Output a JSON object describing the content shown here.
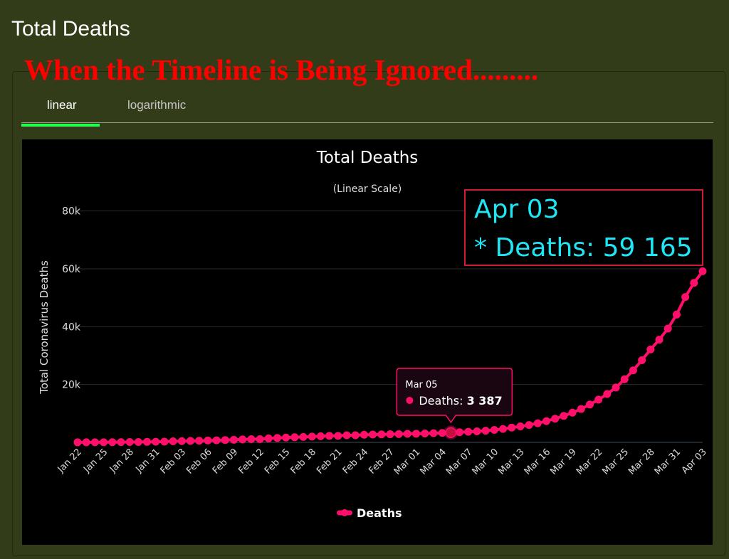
{
  "page": {
    "heading": "Total Deaths",
    "overlay_title": "When the Timeline is Being Ignored........."
  },
  "tabs": [
    {
      "label": "linear",
      "active": true
    },
    {
      "label": "logarithmic",
      "active": false
    }
  ],
  "annotation": {
    "date": "Apr 03",
    "text": "* Deaths: 59 165"
  },
  "tooltip": {
    "date": "Mar 05",
    "series": "Deaths",
    "value": "3 387"
  },
  "colors": {
    "series": "#ff0e6a",
    "background": "#000000",
    "page": "#333c19",
    "overlay_title": "#ff0000",
    "annotation_text": "#1ee6f5",
    "annotation_border": "#d01c33",
    "tab_accent": "#22ff4e"
  },
  "chart_data": {
    "type": "line",
    "title": "Total Deaths",
    "subtitle": "(Linear Scale)",
    "xlabel": "",
    "ylabel": "Total Coronavirus Deaths",
    "ylim": [
      0,
      90000
    ],
    "yticks": [
      0,
      20000,
      40000,
      60000,
      80000
    ],
    "ytick_labels": [
      "0",
      "20k",
      "40k",
      "60k",
      "80k"
    ],
    "grid": true,
    "legend": "bottom-center",
    "categories": [
      "Jan 22",
      "Jan 23",
      "Jan 24",
      "Jan 25",
      "Jan 26",
      "Jan 27",
      "Jan 28",
      "Jan 29",
      "Jan 30",
      "Jan 31",
      "Feb 01",
      "Feb 02",
      "Feb 03",
      "Feb 04",
      "Feb 05",
      "Feb 06",
      "Feb 07",
      "Feb 08",
      "Feb 09",
      "Feb 10",
      "Feb 11",
      "Feb 12",
      "Feb 13",
      "Feb 14",
      "Feb 15",
      "Feb 16",
      "Feb 17",
      "Feb 18",
      "Feb 19",
      "Feb 20",
      "Feb 21",
      "Feb 22",
      "Feb 23",
      "Feb 24",
      "Feb 25",
      "Feb 26",
      "Feb 27",
      "Feb 28",
      "Feb 29",
      "Mar 01",
      "Mar 02",
      "Mar 03",
      "Mar 04",
      "Mar 05",
      "Mar 06",
      "Mar 07",
      "Mar 08",
      "Mar 09",
      "Mar 10",
      "Mar 11",
      "Mar 12",
      "Mar 13",
      "Mar 14",
      "Mar 15",
      "Mar 16",
      "Mar 17",
      "Mar 18",
      "Mar 19",
      "Mar 20",
      "Mar 21",
      "Mar 22",
      "Mar 23",
      "Mar 24",
      "Mar 25",
      "Mar 26",
      "Mar 27",
      "Mar 28",
      "Mar 29",
      "Mar 30",
      "Mar 31",
      "Apr 01",
      "Apr 02",
      "Apr 03"
    ],
    "x_tick_labels": [
      "Jan 22",
      "Jan 25",
      "Jan 28",
      "Jan 31",
      "Feb 03",
      "Feb 06",
      "Feb 09",
      "Feb 12",
      "Feb 15",
      "Feb 18",
      "Feb 21",
      "Feb 24",
      "Feb 27",
      "Mar 01",
      "Mar 04",
      "Mar 07",
      "Mar 10",
      "Mar 13",
      "Mar 16",
      "Mar 19",
      "Mar 22",
      "Mar 25",
      "Mar 28",
      "Mar 31",
      "Apr 03"
    ],
    "series": [
      {
        "name": "Deaths",
        "values": [
          17,
          18,
          26,
          42,
          56,
          82,
          131,
          133,
          171,
          213,
          259,
          362,
          426,
          492,
          564,
          634,
          719,
          806,
          906,
          1013,
          1113,
          1118,
          1371,
          1523,
          1666,
          1770,
          1868,
          2007,
          2122,
          2247,
          2251,
          2458,
          2469,
          2629,
          2708,
          2770,
          2814,
          2872,
          2941,
          2996,
          3085,
          3160,
          3254,
          3387,
          3493,
          3649,
          3800,
          4025,
          4292,
          4641,
          5101,
          5540,
          6000,
          6616,
          7348,
          8191,
          9147,
          10275,
          11543,
          13080,
          14771,
          16733,
          18953,
          21812,
          24905,
          28412,
          32119,
          35502,
          39337,
          44186,
          50259,
          55147,
          59165
        ]
      }
    ]
  }
}
